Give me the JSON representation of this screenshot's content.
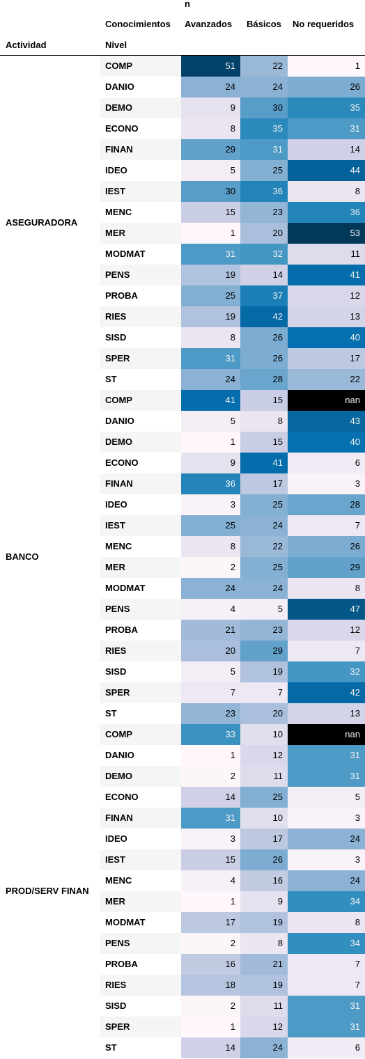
{
  "header": {
    "top_label": "n",
    "col_label": "Conocimientos",
    "row_label_level": "Nivel",
    "row_label_activity": "Actividad"
  },
  "chart_data": {
    "type": "heatmap",
    "columns": [
      "Avanzados",
      "Básicos",
      "No requeridos"
    ],
    "groups": [
      {
        "name": "ASEGURADORA",
        "rows": [
          {
            "label": "COMP",
            "values": [
              51,
              22,
              1
            ]
          },
          {
            "label": "DANIO",
            "values": [
              24,
              24,
              26
            ]
          },
          {
            "label": "DEMO",
            "values": [
              9,
              30,
              35
            ]
          },
          {
            "label": "ECONO",
            "values": [
              8,
              35,
              31
            ]
          },
          {
            "label": "FINAN",
            "values": [
              29,
              31,
              14
            ]
          },
          {
            "label": "IDEO",
            "values": [
              5,
              25,
              44
            ]
          },
          {
            "label": "IEST",
            "values": [
              30,
              36,
              8
            ]
          },
          {
            "label": "MENC",
            "values": [
              15,
              23,
              36
            ]
          },
          {
            "label": "MER",
            "values": [
              1,
              20,
              53
            ]
          },
          {
            "label": "MODMAT",
            "values": [
              31,
              32,
              11
            ]
          },
          {
            "label": "PENS",
            "values": [
              19,
              14,
              41
            ]
          },
          {
            "label": "PROBA",
            "values": [
              25,
              37,
              12
            ]
          },
          {
            "label": "RIES",
            "values": [
              19,
              42,
              13
            ]
          },
          {
            "label": "SISD",
            "values": [
              8,
              26,
              40
            ]
          },
          {
            "label": "SPER",
            "values": [
              31,
              26,
              17
            ]
          },
          {
            "label": "ST",
            "values": [
              24,
              28,
              22
            ]
          }
        ]
      },
      {
        "name": "BANCO",
        "rows": [
          {
            "label": "COMP",
            "values": [
              41,
              15,
              "nan"
            ]
          },
          {
            "label": "DANIO",
            "values": [
              5,
              8,
              43
            ]
          },
          {
            "label": "DEMO",
            "values": [
              1,
              15,
              40
            ]
          },
          {
            "label": "ECONO",
            "values": [
              9,
              41,
              6
            ]
          },
          {
            "label": "FINAN",
            "values": [
              36,
              17,
              3
            ]
          },
          {
            "label": "IDEO",
            "values": [
              3,
              25,
              28
            ]
          },
          {
            "label": "IEST",
            "values": [
              25,
              24,
              7
            ]
          },
          {
            "label": "MENC",
            "values": [
              8,
              22,
              26
            ]
          },
          {
            "label": "MER",
            "values": [
              2,
              25,
              29
            ]
          },
          {
            "label": "MODMAT",
            "values": [
              24,
              24,
              8
            ]
          },
          {
            "label": "PENS",
            "values": [
              4,
              5,
              47
            ]
          },
          {
            "label": "PROBA",
            "values": [
              21,
              23,
              12
            ]
          },
          {
            "label": "RIES",
            "values": [
              20,
              29,
              7
            ]
          },
          {
            "label": "SISD",
            "values": [
              5,
              19,
              32
            ]
          },
          {
            "label": "SPER",
            "values": [
              7,
              7,
              42
            ]
          },
          {
            "label": "ST",
            "values": [
              23,
              20,
              13
            ]
          }
        ]
      },
      {
        "name": "PROD/SERV FINAN",
        "rows": [
          {
            "label": "COMP",
            "values": [
              33,
              10,
              "nan"
            ]
          },
          {
            "label": "DANIO",
            "values": [
              1,
              12,
              31
            ]
          },
          {
            "label": "DEMO",
            "values": [
              2,
              11,
              31
            ]
          },
          {
            "label": "ECONO",
            "values": [
              14,
              25,
              5
            ]
          },
          {
            "label": "FINAN",
            "values": [
              31,
              10,
              3
            ]
          },
          {
            "label": "IDEO",
            "values": [
              3,
              17,
              24
            ]
          },
          {
            "label": "IEST",
            "values": [
              15,
              26,
              3
            ]
          },
          {
            "label": "MENC",
            "values": [
              4,
              16,
              24
            ]
          },
          {
            "label": "MER",
            "values": [
              1,
              9,
              34
            ]
          },
          {
            "label": "MODMAT",
            "values": [
              17,
              19,
              8
            ]
          },
          {
            "label": "PENS",
            "values": [
              2,
              8,
              34
            ]
          },
          {
            "label": "PROBA",
            "values": [
              16,
              21,
              7
            ]
          },
          {
            "label": "RIES",
            "values": [
              18,
              19,
              7
            ]
          },
          {
            "label": "SISD",
            "values": [
              2,
              11,
              31
            ]
          },
          {
            "label": "SPER",
            "values": [
              1,
              12,
              31
            ]
          },
          {
            "label": "ST",
            "values": [
              14,
              24,
              6
            ]
          }
        ]
      }
    ],
    "color_scale": {
      "name": "PuBu",
      "stops": [
        "#fff7fb",
        "#ece7f2",
        "#d0d1e6",
        "#a6bddb",
        "#74a9cf",
        "#3690c0",
        "#0570b0",
        "#045a8d",
        "#023858"
      ],
      "nan_color": "#000000"
    }
  }
}
